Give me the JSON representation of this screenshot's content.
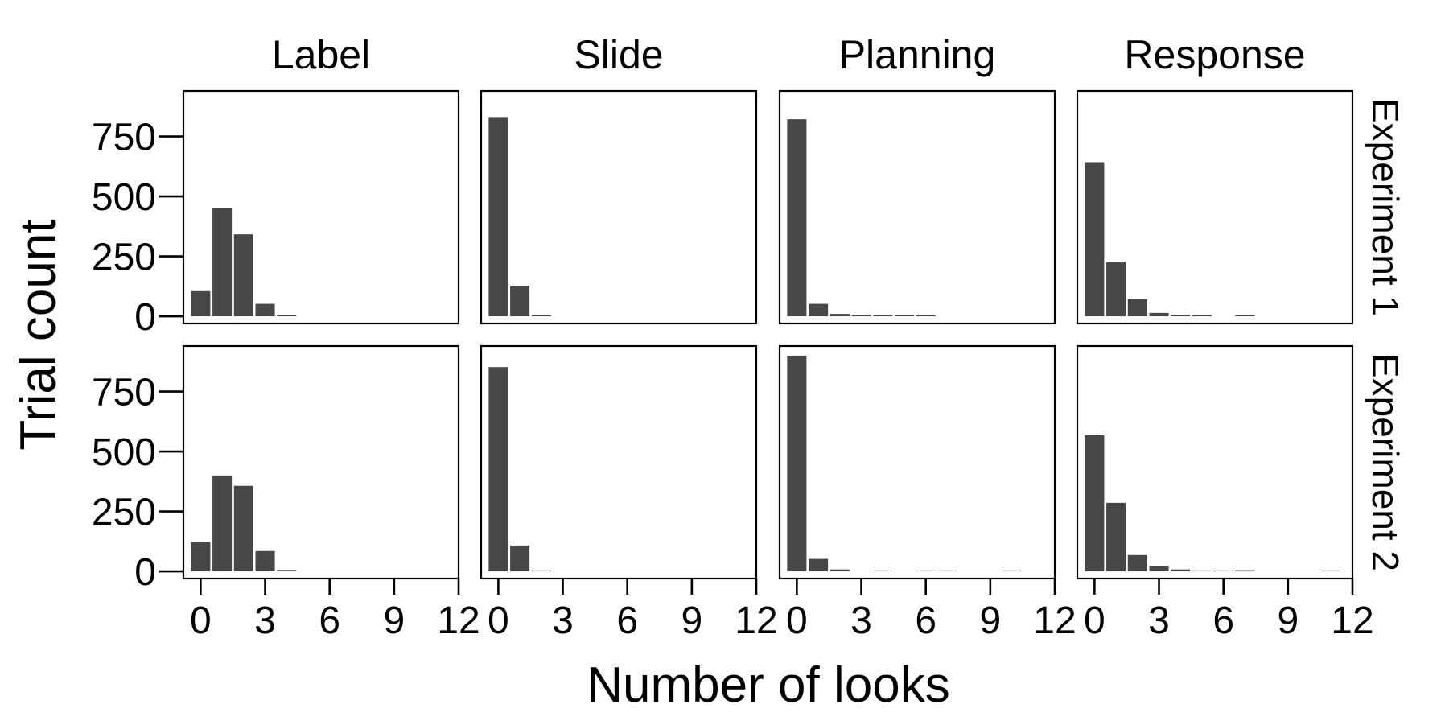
{
  "chart_data": {
    "type": "bar",
    "kind": "faceted-histogram",
    "xlabel": "Number of looks",
    "ylabel": "Trial count",
    "columns": [
      "Label",
      "Slide",
      "Planning",
      "Response"
    ],
    "rows": [
      "Experiment 1",
      "Experiment 2"
    ],
    "xlim": [
      -0.8,
      12
    ],
    "xticks": [
      0,
      3,
      6,
      9,
      12
    ],
    "ylim": [
      -30,
      940
    ],
    "yticks": [
      0,
      250,
      500,
      750
    ],
    "bar_color": "#474747",
    "panels": [
      {
        "row": 0,
        "col": 0,
        "x": [
          0,
          1,
          2,
          3,
          4
        ],
        "values": [
          105,
          452,
          342,
          52,
          5
        ]
      },
      {
        "row": 0,
        "col": 1,
        "x": [
          0,
          1,
          2
        ],
        "values": [
          828,
          127,
          3
        ]
      },
      {
        "row": 0,
        "col": 2,
        "x": [
          0,
          1,
          2,
          3,
          4,
          5,
          6
        ],
        "values": [
          822,
          52,
          10,
          5,
          3,
          2,
          2
        ]
      },
      {
        "row": 0,
        "col": 3,
        "x": [
          0,
          1,
          2,
          3,
          4,
          5,
          7
        ],
        "values": [
          643,
          225,
          72,
          14,
          6,
          3,
          2
        ]
      },
      {
        "row": 1,
        "col": 0,
        "x": [
          0,
          1,
          2,
          3,
          4
        ],
        "values": [
          122,
          400,
          357,
          85,
          6
        ]
      },
      {
        "row": 1,
        "col": 1,
        "x": [
          0,
          1,
          2
        ],
        "values": [
          852,
          108,
          3
        ]
      },
      {
        "row": 1,
        "col": 2,
        "x": [
          0,
          1,
          2,
          4,
          6,
          7,
          10
        ],
        "values": [
          900,
          52,
          8,
          2,
          2,
          2,
          2
        ]
      },
      {
        "row": 1,
        "col": 3,
        "x": [
          0,
          1,
          2,
          3,
          4,
          5,
          6,
          7,
          11
        ],
        "values": [
          568,
          286,
          68,
          22,
          8,
          4,
          3,
          5,
          2
        ]
      }
    ]
  }
}
